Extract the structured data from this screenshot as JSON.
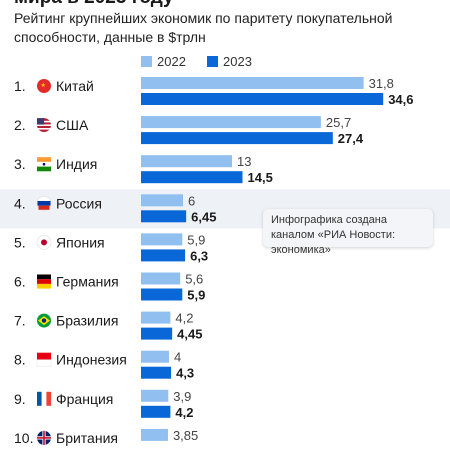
{
  "title": "мира в 2023 году",
  "subtitle": "Рейтинг крупнейших экономик по паритету покупательной способности, данные в $трлн",
  "tooltip": "Инфографика создана каналом «РИА Новости: экономика»",
  "colors": {
    "bar_2022": "#91bff0",
    "bar_2023": "#0a67d8",
    "highlight_row": "#eef1f6",
    "text": "#1a1a1a"
  },
  "chart_data": {
    "type": "bar",
    "orientation": "horizontal",
    "legend_placement": "top",
    "grid": false,
    "categories": [
      "Китай",
      "США",
      "Индия",
      "Россия",
      "Япония",
      "Германия",
      "Бразилия",
      "Индонезия",
      "Франция",
      "Британия"
    ],
    "ranks": [
      "1.",
      "2.",
      "3.",
      "4.",
      "5.",
      "6.",
      "7.",
      "8.",
      "9.",
      "10."
    ],
    "flags": [
      "china-flag-icon",
      "usa-flag-icon",
      "india-flag-icon",
      "russia-flag-icon",
      "japan-flag-icon",
      "germany-flag-icon",
      "brazil-flag-icon",
      "indonesia-flag-icon",
      "france-flag-icon",
      "uk-flag-icon"
    ],
    "highlight_category": "Россия",
    "series": [
      {
        "name": "2022",
        "values": [
          31.8,
          25.7,
          13,
          6,
          5.9,
          5.6,
          4.2,
          4,
          3.9,
          3.85
        ],
        "labels": [
          "31,8",
          "25,7",
          "13",
          "6",
          "5,9",
          "5,6",
          "4,2",
          "4",
          "3,9",
          "3,85"
        ]
      },
      {
        "name": "2023",
        "values": [
          34.6,
          27.4,
          14.5,
          6.45,
          6.3,
          5.9,
          4.45,
          4.3,
          4.2,
          null
        ],
        "labels": [
          "34,6",
          "27,4",
          "14,5",
          "6,45",
          "6,3",
          "5,9",
          "4,45",
          "4,3",
          "4,2",
          ""
        ]
      }
    ]
  }
}
